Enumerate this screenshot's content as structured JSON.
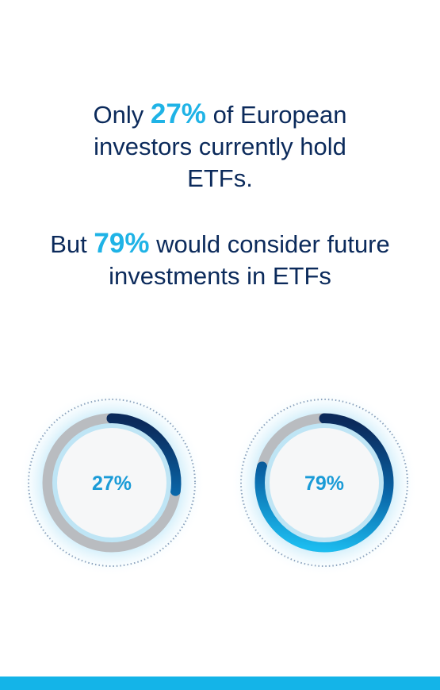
{
  "statements": [
    {
      "before": "Only",
      "highlight": "27%",
      "after": "of European investors currently hold ETFs."
    },
    {
      "before": "But",
      "highlight": "79%",
      "after": "would consider future investments in ETFs"
    }
  ],
  "gauges": [
    {
      "value": 27,
      "label": "27%"
    },
    {
      "value": 79,
      "label": "79%"
    }
  ]
}
